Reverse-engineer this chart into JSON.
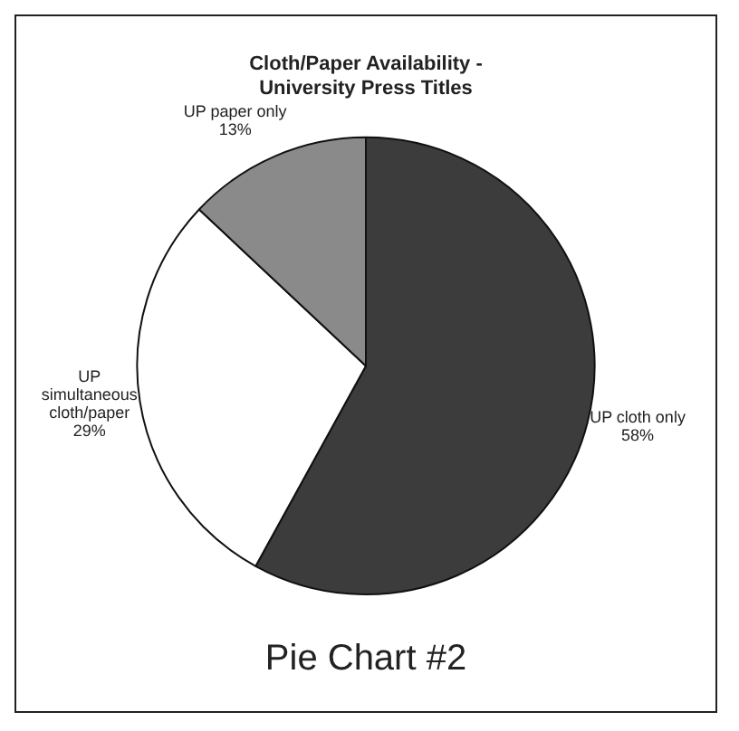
{
  "chart_data": {
    "type": "pie",
    "title": "Cloth/Paper Availability -\nUniversity Press Titles",
    "categories": [
      "UP cloth only",
      "UP simultaneous cloth/paper",
      "UP paper only"
    ],
    "values": [
      58,
      29,
      13
    ],
    "colors": [
      "#3c3c3c",
      "#ffffff",
      "#8a8a8a"
    ],
    "value_labels": [
      "58%",
      "29%",
      "13%"
    ],
    "legend": false,
    "annotations": [
      "Pie Chart #2"
    ]
  }
}
